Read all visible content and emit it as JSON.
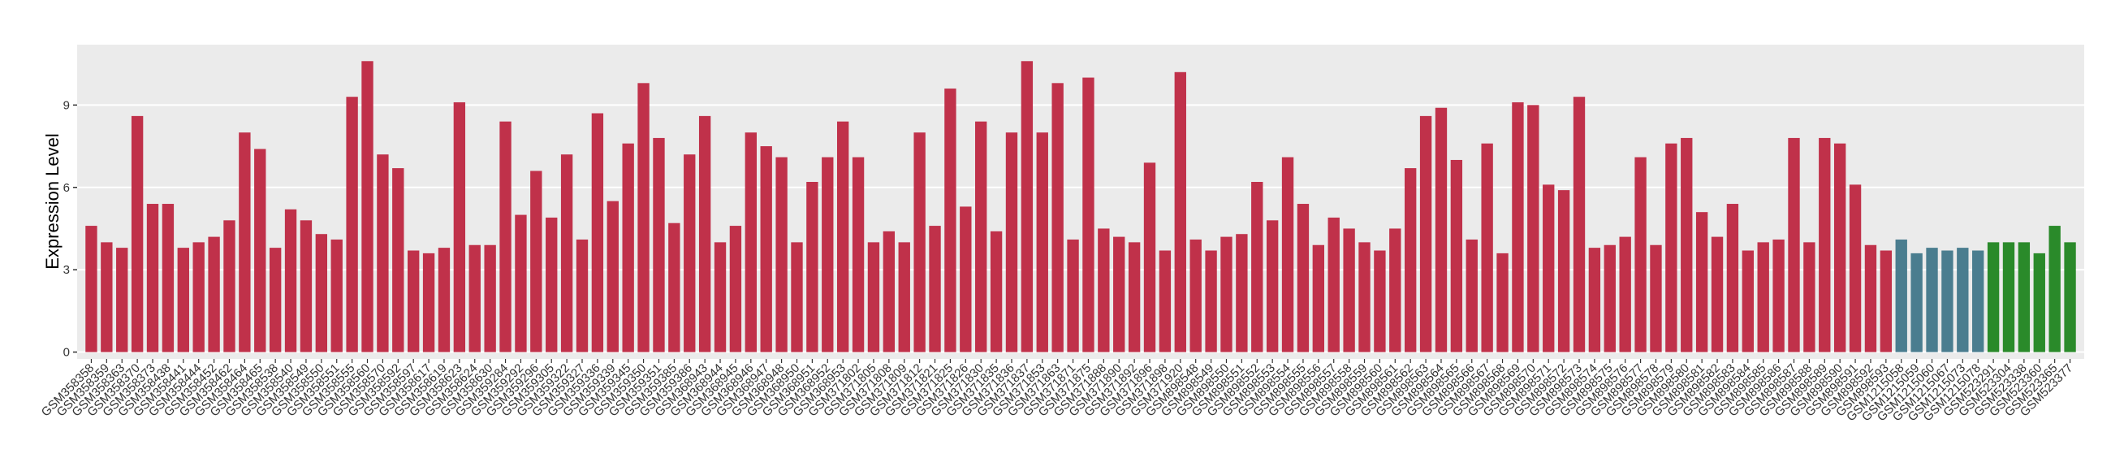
{
  "chart_data": {
    "type": "bar",
    "y_label": "Expression Level",
    "categories": [
      "GSM358358",
      "GSM358359",
      "GSM358363",
      "GSM358370",
      "GSM358373",
      "GSM358438",
      "GSM358441",
      "GSM358444",
      "GSM358452",
      "GSM358462",
      "GSM358464",
      "GSM358465",
      "GSM358538",
      "GSM358540",
      "GSM358549",
      "GSM358550",
      "GSM358551",
      "GSM358555",
      "GSM358560",
      "GSM358570",
      "GSM358592",
      "GSM358597",
      "GSM358617",
      "GSM358619",
      "GSM358623",
      "GSM358624",
      "GSM358630",
      "GSM359284",
      "GSM359292",
      "GSM359296",
      "GSM359305",
      "GSM359322",
      "GSM359327",
      "GSM359336",
      "GSM359339",
      "GSM359345",
      "GSM359350",
      "GSM359351",
      "GSM359385",
      "GSM359386",
      "GSM368943",
      "GSM368944",
      "GSM368945",
      "GSM368946",
      "GSM368947",
      "GSM368948",
      "GSM368950",
      "GSM368951",
      "GSM368952",
      "GSM368953",
      "GSM371802",
      "GSM371805",
      "GSM371808",
      "GSM371809",
      "GSM371812",
      "GSM371821",
      "GSM371825",
      "GSM371826",
      "GSM371830",
      "GSM371835",
      "GSM371836",
      "GSM371837",
      "GSM371853",
      "GSM371863",
      "GSM371871",
      "GSM371875",
      "GSM371888",
      "GSM371890",
      "GSM371892",
      "GSM371896",
      "GSM371898",
      "GSM371920",
      "GSM898548",
      "GSM898549",
      "GSM898550",
      "GSM898551",
      "GSM898552",
      "GSM898553",
      "GSM898554",
      "GSM898555",
      "GSM898556",
      "GSM898557",
      "GSM898558",
      "GSM898559",
      "GSM898560",
      "GSM898561",
      "GSM898562",
      "GSM898563",
      "GSM898564",
      "GSM898565",
      "GSM898566",
      "GSM898567",
      "GSM898568",
      "GSM898569",
      "GSM898570",
      "GSM898571",
      "GSM898572",
      "GSM898573",
      "GSM898574",
      "GSM898575",
      "GSM898576",
      "GSM898577",
      "GSM898578",
      "GSM898579",
      "GSM898580",
      "GSM898581",
      "GSM898582",
      "GSM898583",
      "GSM898584",
      "GSM898585",
      "GSM898586",
      "GSM898587",
      "GSM898588",
      "GSM898589",
      "GSM898590",
      "GSM898591",
      "GSM898592",
      "GSM898593",
      "GSM1215058",
      "GSM1215059",
      "GSM1215060",
      "GSM1215067",
      "GSM1215073",
      "GSM1215078",
      "GSM523291",
      "GSM523304",
      "GSM523338",
      "GSM523360",
      "GSM523365",
      "GSM523377"
    ],
    "values": [
      4.6,
      4.0,
      3.8,
      8.6,
      5.4,
      5.4,
      3.8,
      4.0,
      4.2,
      4.8,
      8.0,
      7.4,
      3.8,
      5.2,
      4.8,
      4.3,
      4.1,
      9.3,
      10.6,
      7.2,
      6.7,
      3.7,
      3.6,
      3.8,
      9.1,
      3.9,
      3.9,
      8.4,
      5.0,
      6.6,
      4.9,
      7.2,
      4.1,
      8.7,
      5.5,
      7.6,
      9.8,
      7.8,
      4.7,
      7.2,
      8.6,
      4.0,
      4.6,
      8.0,
      7.5,
      7.1,
      4.0,
      6.2,
      7.1,
      8.4,
      7.1,
      4.0,
      4.4,
      4.0,
      8.0,
      4.6,
      9.6,
      5.3,
      8.4,
      4.4,
      8.0,
      10.6,
      8.0,
      9.8,
      4.1,
      10.0,
      4.5,
      4.2,
      4.0,
      6.9,
      3.7,
      10.2,
      4.1,
      3.7,
      4.2,
      4.3,
      6.2,
      4.8,
      7.1,
      5.4,
      3.9,
      4.9,
      4.5,
      4.0,
      3.7,
      4.5,
      6.7,
      8.6,
      8.9,
      7.0,
      4.1,
      7.6,
      3.6,
      9.1,
      9.0,
      6.1,
      5.9,
      9.3,
      3.8,
      3.9,
      4.2,
      7.1,
      3.9,
      7.6,
      7.8,
      5.1,
      4.2,
      5.4,
      3.7,
      4.0,
      4.1,
      7.8,
      4.0,
      7.8,
      7.6,
      6.1,
      3.9,
      3.7,
      4.1,
      3.6,
      3.8,
      3.7,
      3.8,
      3.7,
      4.0,
      4.0,
      4.0,
      3.6,
      4.6,
      4.0
    ],
    "colors": [
      "#c0314a",
      "#c0314a",
      "#c0314a",
      "#c0314a",
      "#c0314a",
      "#c0314a",
      "#c0314a",
      "#c0314a",
      "#c0314a",
      "#c0314a",
      "#c0314a",
      "#c0314a",
      "#c0314a",
      "#c0314a",
      "#c0314a",
      "#c0314a",
      "#c0314a",
      "#c0314a",
      "#c0314a",
      "#c0314a",
      "#c0314a",
      "#c0314a",
      "#c0314a",
      "#c0314a",
      "#c0314a",
      "#c0314a",
      "#c0314a",
      "#c0314a",
      "#c0314a",
      "#c0314a",
      "#c0314a",
      "#c0314a",
      "#c0314a",
      "#c0314a",
      "#c0314a",
      "#c0314a",
      "#c0314a",
      "#c0314a",
      "#c0314a",
      "#c0314a",
      "#c0314a",
      "#c0314a",
      "#c0314a",
      "#c0314a",
      "#c0314a",
      "#c0314a",
      "#c0314a",
      "#c0314a",
      "#c0314a",
      "#c0314a",
      "#c0314a",
      "#c0314a",
      "#c0314a",
      "#c0314a",
      "#c0314a",
      "#c0314a",
      "#c0314a",
      "#c0314a",
      "#c0314a",
      "#c0314a",
      "#c0314a",
      "#c0314a",
      "#c0314a",
      "#c0314a",
      "#c0314a",
      "#c0314a",
      "#c0314a",
      "#c0314a",
      "#c0314a",
      "#c0314a",
      "#c0314a",
      "#c0314a",
      "#c0314a",
      "#c0314a",
      "#c0314a",
      "#c0314a",
      "#c0314a",
      "#c0314a",
      "#c0314a",
      "#c0314a",
      "#c0314a",
      "#c0314a",
      "#c0314a",
      "#c0314a",
      "#c0314a",
      "#c0314a",
      "#c0314a",
      "#c0314a",
      "#c0314a",
      "#c0314a",
      "#c0314a",
      "#c0314a",
      "#c0314a",
      "#c0314a",
      "#c0314a",
      "#c0314a",
      "#c0314a",
      "#c0314a",
      "#c0314a",
      "#c0314a",
      "#c0314a",
      "#c0314a",
      "#c0314a",
      "#c0314a",
      "#c0314a",
      "#c0314a",
      "#c0314a",
      "#c0314a",
      "#c0314a",
      "#c0314a",
      "#c0314a",
      "#c0314a",
      "#c0314a",
      "#c0314a",
      "#c0314a",
      "#c0314a",
      "#c0314a",
      "#c0314a",
      "#4a7d8f",
      "#4a7d8f",
      "#4a7d8f",
      "#4a7d8f",
      "#4a7d8f",
      "#4a7d8f",
      "#2a8a2a",
      "#2a8a2a",
      "#2a8a2a",
      "#2a8a2a",
      "#2a8a2a",
      "#2a8a2a"
    ],
    "ylim": [
      -0.25,
      11.2
    ],
    "yticks": [
      0,
      3,
      6,
      9
    ],
    "grid": true
  }
}
